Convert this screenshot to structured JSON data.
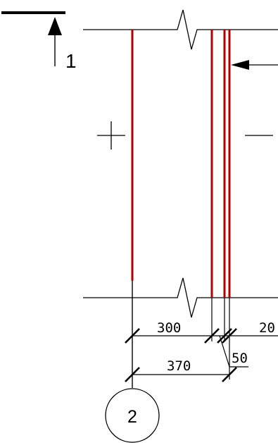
{
  "section_mark": {
    "label": "1"
  },
  "axis_marker": {
    "label": "2"
  },
  "dimensions": {
    "d300": "300",
    "d20": "20",
    "d370": "370",
    "d50": "50"
  },
  "colors": {
    "line": "#000000",
    "wall_layer": "#b00000"
  }
}
